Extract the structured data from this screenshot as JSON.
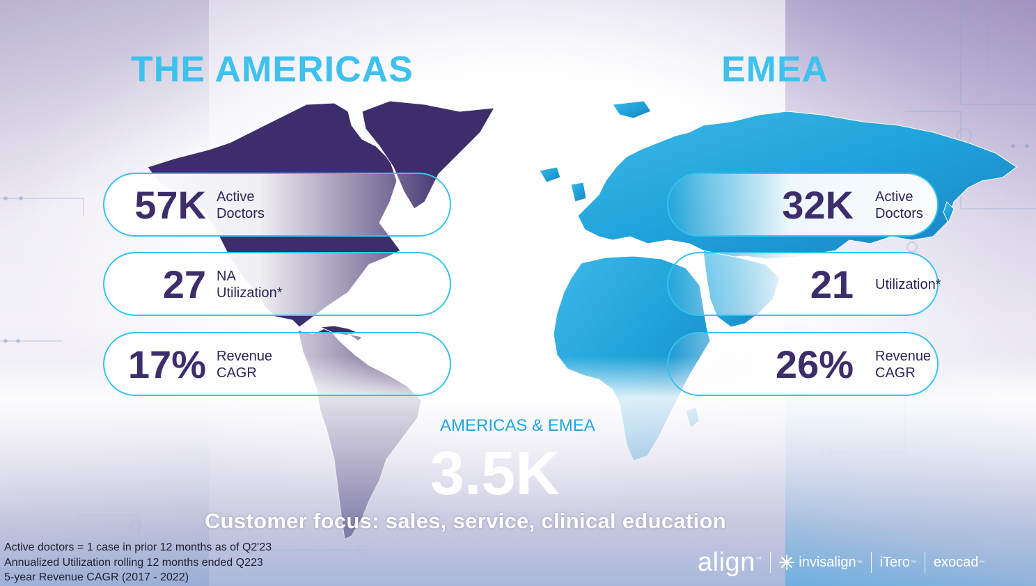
{
  "americas": {
    "title": "THE AMERICAS",
    "metrics": [
      {
        "value": "57K",
        "label_line1": "Active",
        "label_line2": "Doctors"
      },
      {
        "value": "27",
        "label_line1": "NA",
        "label_line2": "Utilization*"
      },
      {
        "value": "17%",
        "label_line1": "Revenue",
        "label_line2": "CAGR"
      }
    ]
  },
  "emea": {
    "title": "EMEA",
    "metrics": [
      {
        "value": "32K",
        "label_line1": "Active",
        "label_line2": "Doctors"
      },
      {
        "value": "21",
        "label_line1": "Utilization*"
      },
      {
        "value": "26%",
        "label_line1": "Revenue",
        "label_line2": "CAGR"
      }
    ]
  },
  "combined": {
    "label": "AMERICAS & EMEA",
    "value": "3.5K"
  },
  "tagline": "Customer focus: sales, service, clinical education",
  "footnotes": [
    "Active doctors = 1 case in prior 12 months as of Q2'23",
    "Annualized Utilization rolling 12 months ended Q223",
    "5-year Revenue CAGR (2017 - 2022)"
  ],
  "logos": {
    "align": "align",
    "invisalign": "invisalign",
    "itero": "iTero",
    "exocad": "exocad"
  },
  "colors": {
    "title": "#3ec1ec",
    "americas_map": "#3d2e6b",
    "emea_map": "#1ea3d9",
    "metric": "#3d2e6b",
    "pill_border": "#33c3ef"
  }
}
